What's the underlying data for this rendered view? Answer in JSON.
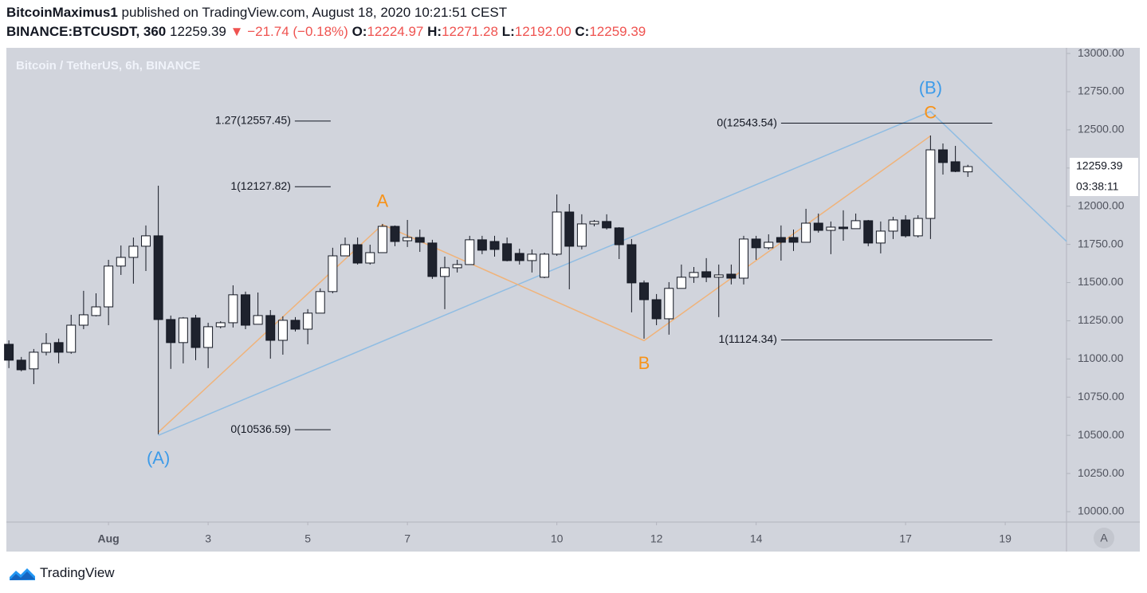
{
  "header": {
    "author": "BitcoinMaximus1",
    "published": "published on TradingView.com, August 18, 2020 10:21:51 CEST",
    "symbol": "BINANCE:BTCUSDT, 360",
    "last": "12259.39",
    "arrow": "▼",
    "change": "−21.74 (−0.18%)",
    "ohlc": [
      {
        "label": "O:",
        "value": "12224.97"
      },
      {
        "label": "H:",
        "value": "12271.28"
      },
      {
        "label": "L:",
        "value": "12192.00"
      },
      {
        "label": "C:",
        "value": "12259.39"
      }
    ]
  },
  "chart_data": {
    "type": "candlestick",
    "title": "Bitcoin / TetherUS, 6h, BINANCE",
    "up_color": "#ffffff",
    "down_color": "#1e222d",
    "x": [
      -1,
      -0.75,
      -0.5,
      -0.25,
      0,
      0.25,
      0.5,
      0.75,
      1,
      1.25,
      1.5,
      1.75,
      2,
      2.25,
      2.5,
      2.75,
      3,
      3.25,
      3.5,
      3.75,
      4,
      4.25,
      4.5,
      4.75,
      5,
      5.25,
      5.5,
      5.75,
      6,
      6.25,
      6.5,
      6.75,
      7,
      7.25,
      7.5,
      7.75,
      8,
      8.25,
      8.5,
      8.75,
      9,
      9.25,
      9.5,
      9.75,
      10,
      10.25,
      10.5,
      10.75,
      11,
      11.25,
      11.5,
      11.75,
      12,
      12.25,
      12.5,
      12.75,
      13,
      13.25,
      13.5,
      13.75,
      14,
      14.25,
      14.5,
      14.75,
      15,
      15.25,
      15.5,
      15.75,
      16,
      16.25,
      16.5,
      16.75,
      17,
      17.25,
      17.5,
      17.75,
      18,
      18.25
    ],
    "open": [
      11096,
      10992,
      10935,
      11044,
      11107,
      11044,
      11221,
      11284,
      11341,
      11608,
      11665,
      11738,
      11806,
      11258,
      11107,
      11268,
      11075,
      11211,
      11237,
      11420,
      11227,
      11284,
      11122,
      11253,
      11195,
      11300,
      11441,
      11675,
      11748,
      11628,
      11696,
      11868,
      11774,
      11795,
      11759,
      11540,
      11597,
      11618,
      11780,
      11769,
      11754,
      11691,
      11644,
      11535,
      11686,
      11962,
      11738,
      11884,
      11900,
      11858,
      11748,
      11498,
      11388,
      11263,
      11462,
      11535,
      11571,
      11535,
      11555,
      11529,
      11785,
      11728,
      11795,
      11795,
      11764,
      11889,
      11842,
      11863,
      11853,
      11905,
      11759,
      11837,
      11910,
      11806,
      11920,
      12369,
      12291,
      12224.97
    ],
    "high": [
      11122,
      11013,
      11065,
      11169,
      11133,
      11289,
      11446,
      11430,
      11649,
      11743,
      11795,
      11874,
      12134,
      11284,
      11274,
      11289,
      11237,
      11247,
      11482,
      11441,
      11435,
      11320,
      11279,
      11274,
      11326,
      11462,
      11728,
      11795,
      11795,
      11748,
      11884,
      11874,
      11910,
      11847,
      11780,
      11670,
      11649,
      11806,
      11806,
      11806,
      11795,
      11722,
      11717,
      11696,
      12077,
      12014,
      11947,
      11910,
      11947,
      11863,
      11785,
      11514,
      11425,
      11503,
      11618,
      11602,
      11660,
      11618,
      11618,
      11806,
      11806,
      11816,
      11874,
      11847,
      11983,
      11952,
      11900,
      11973,
      11952,
      11910,
      11900,
      11931,
      11941,
      11941,
      12463,
      12411,
      12395,
      12271.28
    ],
    "low": [
      10940,
      10919,
      10835,
      11023,
      10971,
      11034,
      11195,
      11279,
      11221,
      11550,
      11493,
      11576,
      10507,
      10935,
      10971,
      10992,
      10940,
      11200,
      11206,
      11195,
      11227,
      11002,
      11028,
      11180,
      11096,
      11300,
      11430,
      11675,
      11618,
      11618,
      11696,
      11738,
      11733,
      11701,
      11524,
      11326,
      11566,
      11618,
      11686,
      11670,
      11639,
      11618,
      11566,
      11529,
      11675,
      11456,
      11717,
      11868,
      11847,
      11654,
      11305,
      11133,
      11221,
      11159,
      11462,
      11498,
      11503,
      11274,
      11488,
      11488,
      11649,
      11717,
      11644,
      11707,
      11764,
      11827,
      11686,
      11774,
      11853,
      11738,
      11691,
      11785,
      11795,
      11795,
      11785,
      12207,
      12223,
      12192
    ],
    "close": [
      10992,
      10929,
      11044,
      11101,
      11044,
      11221,
      11289,
      11341,
      11608,
      11665,
      11738,
      11806,
      11258,
      11107,
      11268,
      11075,
      11211,
      11237,
      11420,
      11221,
      11284,
      11122,
      11253,
      11195,
      11300,
      11441,
      11675,
      11748,
      11628,
      11696,
      11868,
      11769,
      11795,
      11764,
      11540,
      11597,
      11618,
      11780,
      11712,
      11717,
      11644,
      11644,
      11686,
      11686,
      11962,
      11738,
      11884,
      11900,
      11858,
      11748,
      11498,
      11388,
      11263,
      11462,
      11535,
      11566,
      11535,
      11550,
      11529,
      11785,
      11728,
      11764,
      11764,
      11764,
      11889,
      11842,
      11863,
      11853,
      11905,
      11759,
      11837,
      11910,
      11806,
      11920,
      12369,
      12286,
      12228,
      12259.39
    ],
    "xlim": [
      -1.05,
      20.23
    ],
    "xticks": [
      {
        "value": 1,
        "label": "Aug"
      },
      3,
      5,
      7,
      10,
      12,
      14,
      17,
      19
    ],
    "ylim": [
      9932,
      13037
    ],
    "yticks": [
      {
        "value": 10000,
        "label": "10000.00"
      },
      {
        "value": 10250,
        "label": "10250.00"
      },
      {
        "value": 10500,
        "label": "10500.00"
      },
      {
        "value": 10750,
        "label": "10750.00"
      },
      {
        "value": 11000,
        "label": "11000.00"
      },
      {
        "value": 11250,
        "label": "11250.00"
      },
      {
        "value": 11500,
        "label": "11500.00"
      },
      {
        "value": 11750,
        "label": "11750.00"
      },
      {
        "value": 12000,
        "label": "12000.00"
      },
      {
        "value": 12250,
        "label": "12250.00"
      },
      {
        "value": 12500,
        "label": "12500.00"
      },
      {
        "value": 12750,
        "label": "12750.00"
      },
      {
        "value": 13000,
        "label": "13000.00"
      }
    ],
    "last_price": {
      "value": 12259.39,
      "label": "12259.39"
    },
    "countdown": "03:38:11",
    "fib_levels": [
      {
        "label": "1.27(12557.45)",
        "value": 12557.45,
        "x": [
          4.74,
          5.46
        ]
      },
      {
        "label": "1(12127.82)",
        "value": 12127.82,
        "x": [
          4.74,
          5.46
        ]
      },
      {
        "label": "0(10536.59)",
        "value": 10536.59,
        "x": [
          4.74,
          5.46
        ]
      },
      {
        "label": "0(12543.54)",
        "value": 12543.54,
        "x": [
          14.5,
          18.74
        ]
      },
      {
        "label": "1(11124.34)",
        "value": 11124.34,
        "x": [
          14.5,
          18.74
        ]
      }
    ],
    "waves": [
      {
        "color": "#90bde3",
        "label_color": "#3d9be9",
        "labels": [
          "(A)",
          "(B)",
          null
        ],
        "x": [
          2,
          17.5,
          20.23
        ],
        "y": [
          10500,
          12620,
          11770
        ]
      },
      {
        "color": "#f0b37a",
        "label_color": "#f7931a",
        "labels": [
          null,
          "A",
          "B",
          "C"
        ],
        "x": [
          2,
          6.5,
          11.75,
          17.5
        ],
        "y": [
          10520,
          11880,
          11120,
          12460
        ]
      }
    ]
  },
  "controls": {
    "auto_scale": "A"
  },
  "footer": {
    "brand": "TradingView"
  }
}
